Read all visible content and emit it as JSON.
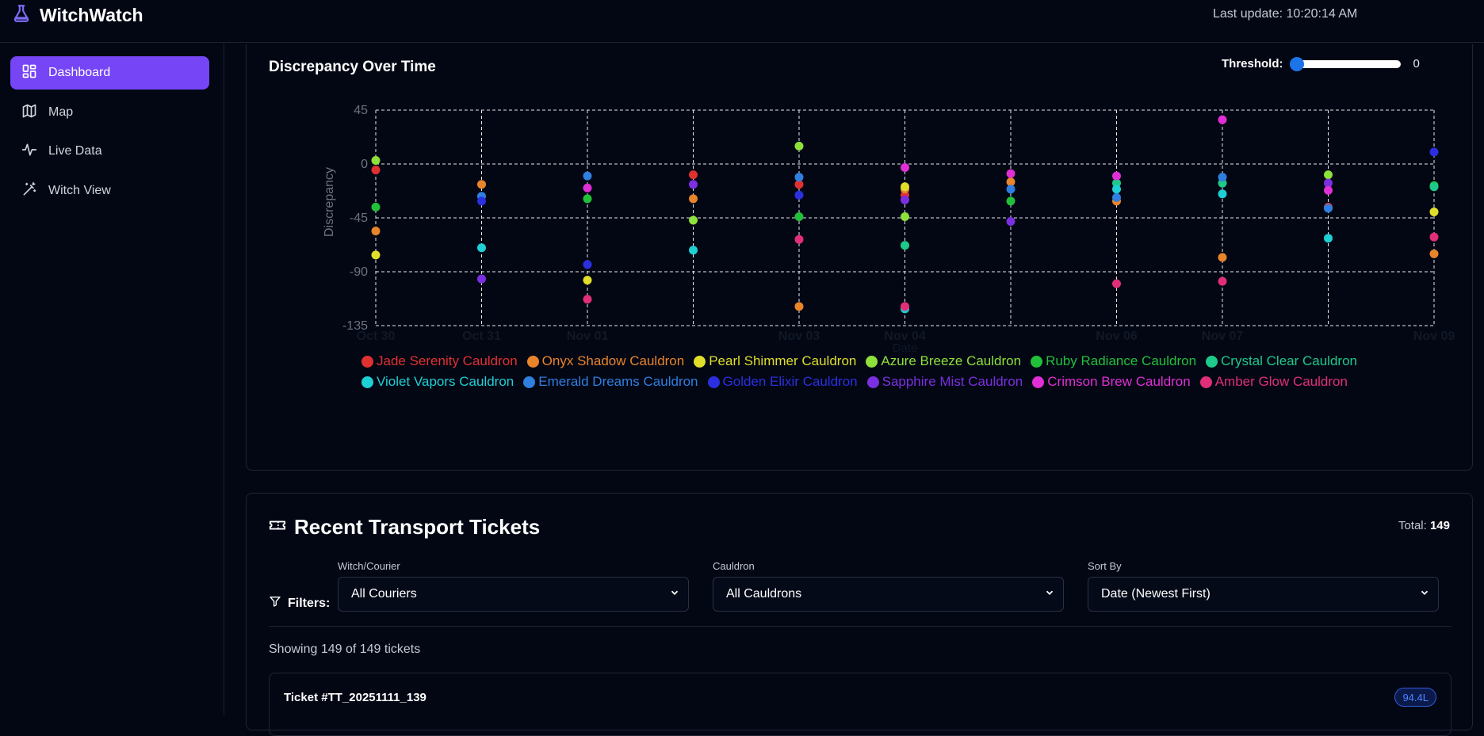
{
  "header": {
    "title": "WitchWatch",
    "last_update": "Last update: 10:20:14 AM"
  },
  "sidebar": {
    "items": [
      {
        "label": "Dashboard",
        "icon": "dashboard-icon",
        "active": true
      },
      {
        "label": "Map",
        "icon": "map-icon",
        "active": false
      },
      {
        "label": "Live Data",
        "icon": "pulse-icon",
        "active": false
      },
      {
        "label": "Witch View",
        "icon": "wand-icon",
        "active": false
      }
    ]
  },
  "chart_section": {
    "title": "Discrepancy Over Time",
    "threshold_label": "Threshold:",
    "threshold_value": "0",
    "threshold_fraction": 0
  },
  "chart_data": {
    "type": "scatter",
    "title": "Discrepancy Over Time",
    "xlabel": "Date",
    "ylabel": "Discrepancy",
    "ylim": [
      -135,
      45
    ],
    "yticks": [
      45,
      0,
      -45,
      -90,
      -135
    ],
    "x": [
      "Oct 30",
      "Oct 31",
      "Nov 01",
      "Nov 02",
      "Nov 03",
      "Nov 04",
      "Nov 05",
      "Nov 06",
      "Nov 07",
      "Nov 08",
      "Nov 09"
    ],
    "x_tick_labels": [
      "Oct 30",
      "Oct 31",
      "Nov 01",
      "",
      "Nov 03",
      "Nov 04",
      "",
      "Nov 06",
      "Nov 07",
      "",
      "Nov 09"
    ],
    "grid": true,
    "legend_position": "bottom",
    "series": [
      {
        "name": "Jade Serenity Cauldron",
        "color": "#e03131",
        "values": [
          -5,
          null,
          null,
          -9,
          -17,
          -26,
          null,
          null,
          null,
          -36,
          null
        ]
      },
      {
        "name": "Onyx Shadow Cauldron",
        "color": "#e8842a",
        "values": [
          -56,
          -17,
          null,
          -29,
          -119,
          -21,
          -15,
          -31,
          -78,
          null,
          -75
        ]
      },
      {
        "name": "Pearl Shimmer Cauldron",
        "color": "#e0de2a",
        "values": [
          -76,
          null,
          -97,
          null,
          null,
          -19,
          null,
          null,
          null,
          null,
          -40
        ]
      },
      {
        "name": "Azure Breeze Cauldron",
        "color": "#8ee03a",
        "values": [
          3,
          null,
          null,
          -47,
          15,
          -44,
          null,
          null,
          null,
          -9,
          null
        ]
      },
      {
        "name": "Ruby Radiance Cauldron",
        "color": "#22c03a",
        "values": [
          -36,
          null,
          -29,
          null,
          -44,
          null,
          -31,
          null,
          null,
          null,
          -18
        ]
      },
      {
        "name": "Crystal Clear Cauldron",
        "color": "#1ec98a",
        "values": [
          null,
          null,
          null,
          null,
          null,
          -68,
          null,
          -16,
          -16,
          null,
          -19
        ]
      },
      {
        "name": "Violet Vapors Cauldron",
        "color": "#1ecfd4",
        "values": [
          null,
          -70,
          null,
          -72,
          null,
          -121,
          null,
          -21,
          -25,
          -62,
          null
        ]
      },
      {
        "name": "Emerald Dreams Cauldron",
        "color": "#2f7fe0",
        "values": [
          null,
          -27,
          -10,
          null,
          -11,
          null,
          -21,
          -28,
          -11,
          -37,
          null
        ]
      },
      {
        "name": "Golden Elixir Cauldron",
        "color": "#2b2fe0",
        "values": [
          null,
          -31,
          -84,
          null,
          -26,
          null,
          null,
          null,
          null,
          null,
          10
        ]
      },
      {
        "name": "Sapphire Mist Cauldron",
        "color": "#7b2fe0",
        "values": [
          null,
          -96,
          null,
          -17,
          null,
          -30,
          -48,
          null,
          null,
          -16,
          null
        ]
      },
      {
        "name": "Crimson Brew Cauldron",
        "color": "#e02fd4",
        "values": [
          null,
          null,
          -20,
          null,
          null,
          -3,
          -8,
          -10,
          37,
          -22,
          null
        ]
      },
      {
        "name": "Amber Glow Cauldron",
        "color": "#e02f78",
        "values": [
          null,
          null,
          -113,
          null,
          -63,
          -119,
          null,
          -100,
          -98,
          null,
          -61
        ]
      }
    ]
  },
  "tickets": {
    "title": "Recent Transport Tickets",
    "total_label": "Total:",
    "total_value": "149",
    "filters_label": "Filters:",
    "filters": [
      {
        "label": "Witch/Courier",
        "value": "All Couriers"
      },
      {
        "label": "Cauldron",
        "value": "All Cauldrons"
      },
      {
        "label": "Sort By",
        "value": "Date (Newest First)"
      }
    ],
    "showing": "Showing 149 of 149 tickets",
    "items": [
      {
        "id": "Ticket #TT_20251111_139",
        "badge": "94.4L"
      }
    ]
  }
}
